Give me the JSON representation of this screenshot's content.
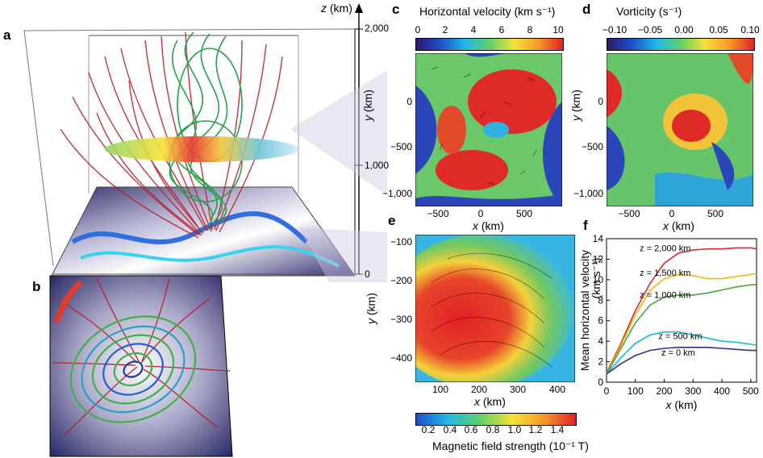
{
  "panel_letters": {
    "a": "a",
    "b": "b",
    "c": "c",
    "d": "d",
    "e": "e",
    "f": "f"
  },
  "panel_a": {
    "z_axis": {
      "var": "z",
      "unit": " (km)",
      "ticks": [
        "2,000",
        "1,000",
        "0"
      ]
    }
  },
  "panel_c": {
    "colorbar_title": "Horizontal velocity (km s⁻¹)",
    "colorbar_ticks": [
      "0",
      "2",
      "4",
      "6",
      "8",
      "10"
    ],
    "x_ticks": [
      "−500",
      "0",
      "500"
    ],
    "y_ticks": [
      "0",
      "−500",
      "−1,000"
    ],
    "xlabel_var": "x",
    "xlabel_unit": " (km)",
    "ylabel_var": "y",
    "ylabel_unit": " (km)"
  },
  "panel_d": {
    "colorbar_title": "Vorticity (s⁻¹)",
    "colorbar_ticks": [
      "−0.10",
      "−0.05",
      "0.00",
      "0.05",
      "0.10"
    ],
    "x_ticks": [
      "−500",
      "0",
      "500"
    ],
    "y_ticks": [
      "0",
      "−500",
      "−1,000"
    ],
    "xlabel_var": "x",
    "xlabel_unit": " (km)",
    "ylabel_var": "y",
    "ylabel_unit": " (km)"
  },
  "panel_e": {
    "x_ticks": [
      "100",
      "200",
      "300",
      "400"
    ],
    "y_ticks": [
      "−100",
      "−200",
      "−300",
      "−400"
    ],
    "xlabel_var": "x",
    "xlabel_unit": " (km)",
    "ylabel_var": "y",
    "ylabel_unit": " (km)",
    "colorbar_ticks": [
      "0.2",
      "0.4",
      "0.6",
      "0.8",
      "1.0",
      "1.2",
      "1.4"
    ],
    "colorbar_title": "Magnetic field strength (10⁻¹ T)"
  },
  "chart_data": {
    "type": "line",
    "xlabel_var": "x",
    "xlabel_unit": " (km)",
    "ylabel": "Mean horizontal velocity",
    "ylabel_unit": "(km s⁻¹)",
    "xlim": [
      0,
      520
    ],
    "ylim": [
      0,
      14
    ],
    "x_ticks": [
      0,
      100,
      200,
      300,
      400,
      500
    ],
    "y_ticks": [
      0,
      2,
      4,
      6,
      8,
      10,
      12,
      14
    ],
    "x": [
      0,
      50,
      100,
      150,
      200,
      250,
      300,
      350,
      400,
      450,
      500,
      520
    ],
    "series": [
      {
        "name": "z = 2,000 km",
        "color": "#e4262c",
        "values": [
          0.9,
          3.8,
          7.0,
          9.6,
          11.6,
          12.6,
          12.9,
          13.0,
          13.0,
          13.1,
          13.1,
          13.0
        ]
      },
      {
        "name": "z = 1,500 km",
        "color": "#f4b60a",
        "values": [
          0.8,
          3.6,
          6.6,
          8.9,
          10.1,
          10.5,
          10.4,
          10.1,
          10.1,
          10.3,
          10.5,
          10.6
        ]
      },
      {
        "name": "z = 1,000 km",
        "color": "#43a740",
        "values": [
          0.8,
          3.3,
          5.8,
          7.5,
          8.3,
          8.5,
          8.5,
          8.7,
          9.0,
          9.3,
          9.5,
          9.5
        ]
      },
      {
        "name": "z = 500 km",
        "color": "#19b7e0",
        "values": [
          0.8,
          2.4,
          3.8,
          4.6,
          4.9,
          4.9,
          4.6,
          4.3,
          4.0,
          3.9,
          3.7,
          3.6
        ]
      },
      {
        "name": "z = 0 km",
        "color": "#3b2c8c",
        "values": [
          0.8,
          1.8,
          2.6,
          3.1,
          3.3,
          3.4,
          3.4,
          3.4,
          3.3,
          3.2,
          3.1,
          3.1
        ]
      }
    ]
  }
}
